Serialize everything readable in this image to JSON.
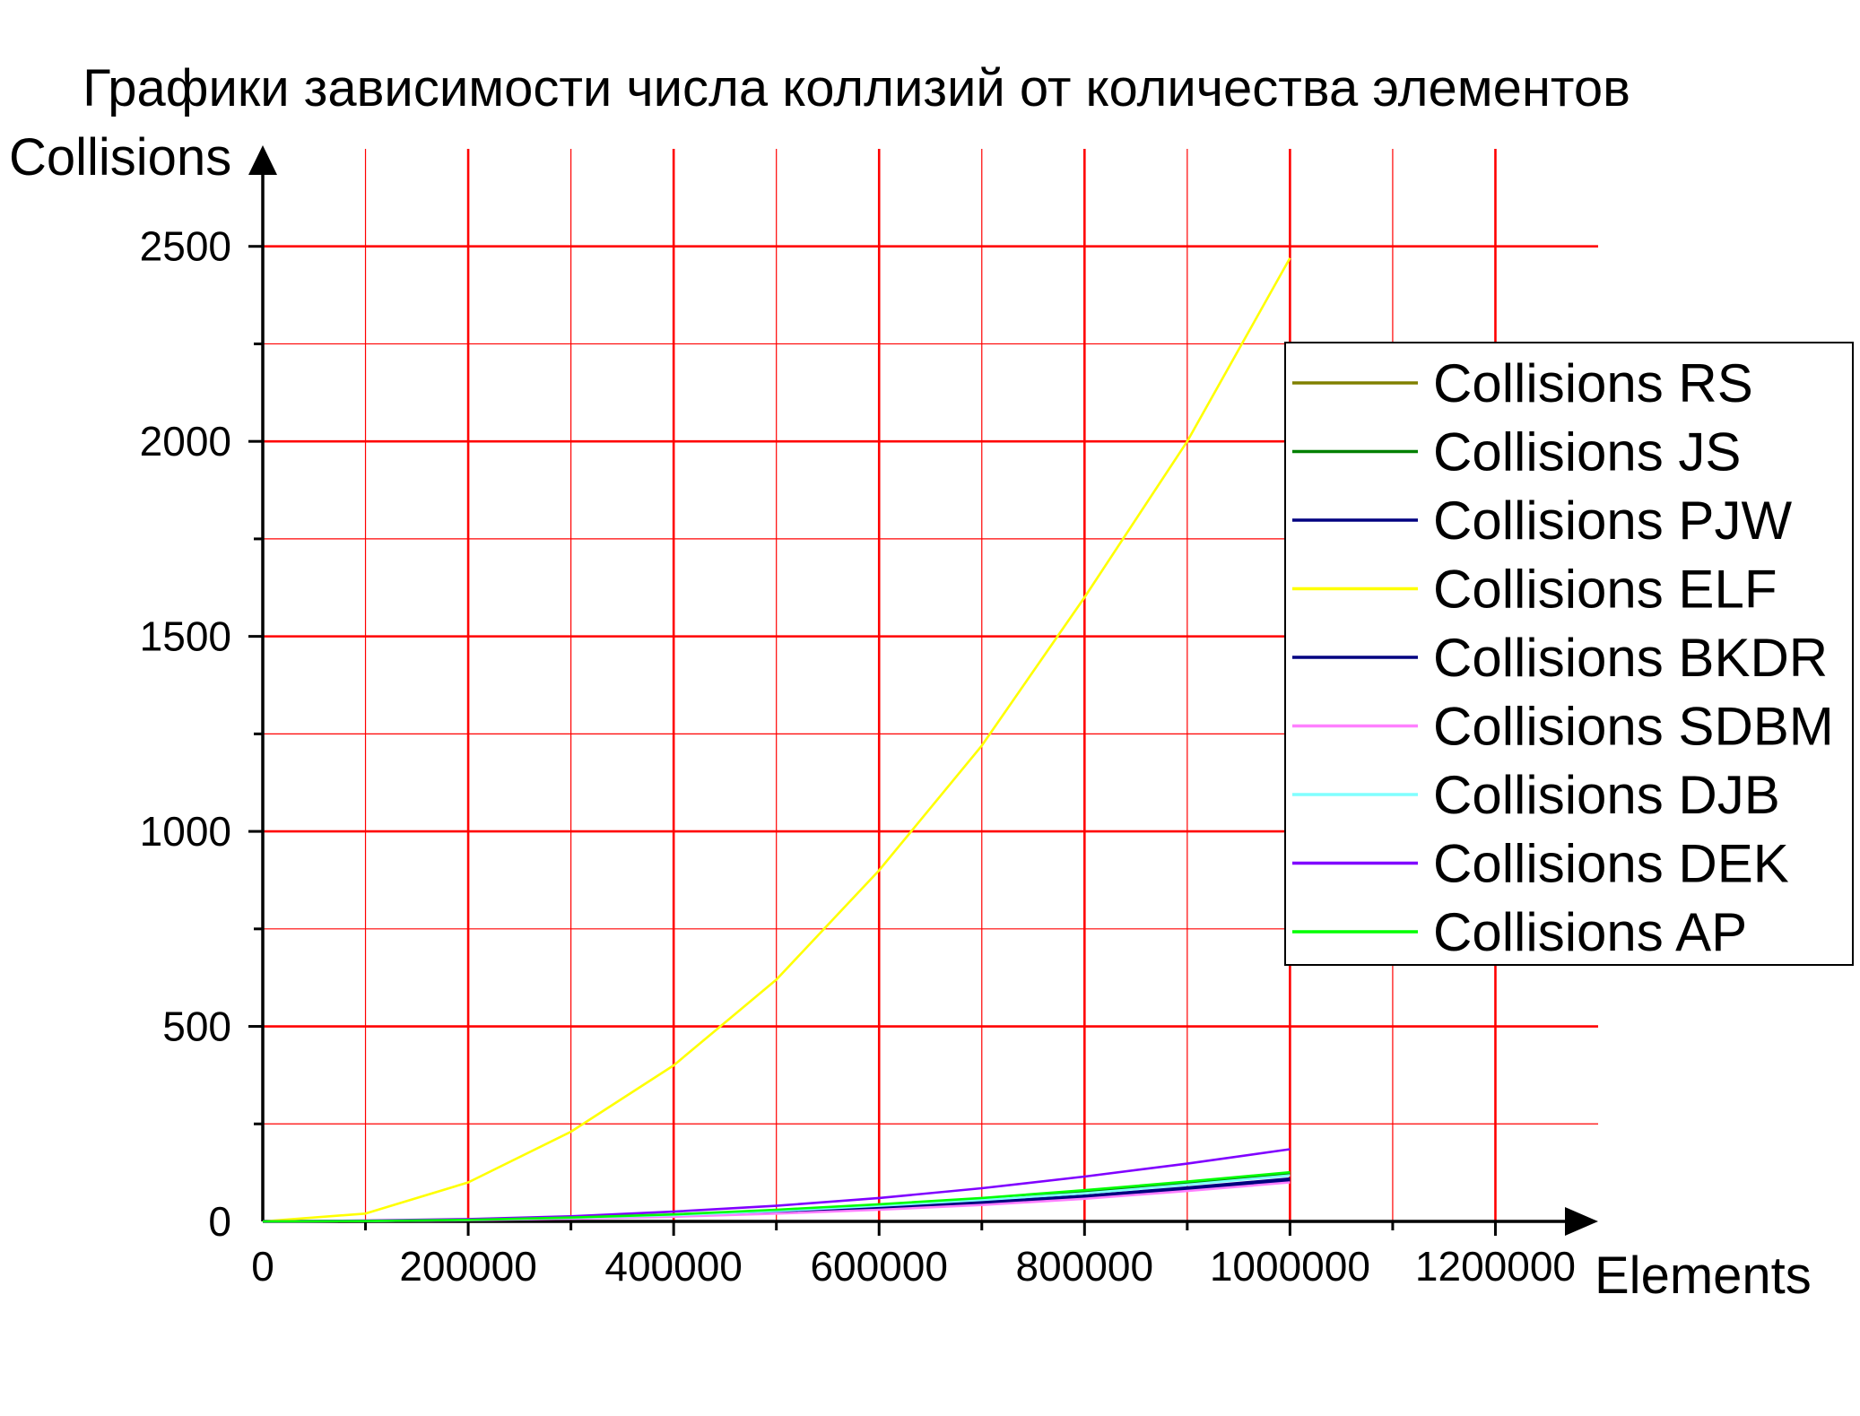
{
  "chart_data": {
    "type": "line",
    "title": "Графики зависимости числа коллизий от количества элементов",
    "xlabel": "Elements",
    "ylabel": "Collisions",
    "xlim": [
      0,
      1300000
    ],
    "ylim": [
      0,
      2750
    ],
    "x_ticks": [
      "0",
      "200000",
      "400000",
      "600000",
      "800000",
      "1000000",
      "1200000"
    ],
    "y_ticks": [
      "0",
      "500",
      "1000",
      "1500",
      "2000",
      "2500"
    ],
    "grid": true,
    "legend_position": "right",
    "x": [
      0,
      100000,
      200000,
      300000,
      400000,
      500000,
      600000,
      700000,
      800000,
      900000,
      1000000
    ],
    "series": [
      {
        "name": "Collisions RS",
        "color": "#808000",
        "values": [
          0,
          1,
          4,
          9,
          16,
          27,
          40,
          56,
          73,
          95,
          120
        ]
      },
      {
        "name": "Collisions JS",
        "color": "#008000",
        "values": [
          0,
          1,
          4,
          9,
          17,
          28,
          41,
          56,
          75,
          97,
          122
        ]
      },
      {
        "name": "Collisions PJW",
        "color": "#000080",
        "values": [
          0,
          1,
          3,
          8,
          14,
          23,
          33,
          46,
          62,
          82,
          105
        ]
      },
      {
        "name": "Collisions ELF",
        "color": "#ffff00",
        "values": [
          0,
          20,
          100,
          230,
          400,
          620,
          900,
          1220,
          1600,
          2000,
          2470
        ]
      },
      {
        "name": "Collisions BKDR",
        "color": "#000080",
        "values": [
          0,
          1,
          4,
          9,
          15,
          25,
          36,
          50,
          66,
          87,
          110
        ]
      },
      {
        "name": "Collisions SDBM",
        "color": "#ff80ff",
        "values": [
          0,
          1,
          3,
          7,
          12,
          20,
          30,
          42,
          58,
          78,
          100
        ]
      },
      {
        "name": "Collisions DJB",
        "color": "#80ffff",
        "values": [
          0,
          1,
          4,
          9,
          16,
          27,
          40,
          55,
          72,
          94,
          118
        ]
      },
      {
        "name": "Collisions DEK",
        "color": "#8000ff",
        "values": [
          0,
          2,
          6,
          13,
          25,
          40,
          60,
          85,
          115,
          148,
          185
        ]
      },
      {
        "name": "Collisions AP",
        "color": "#00ff00",
        "values": [
          0,
          1,
          4,
          10,
          18,
          30,
          44,
          60,
          80,
          102,
          126
        ]
      }
    ]
  },
  "colors": {
    "grid_major": "#ff0000",
    "grid_minor": "#ff0000",
    "axis": "#000000"
  }
}
